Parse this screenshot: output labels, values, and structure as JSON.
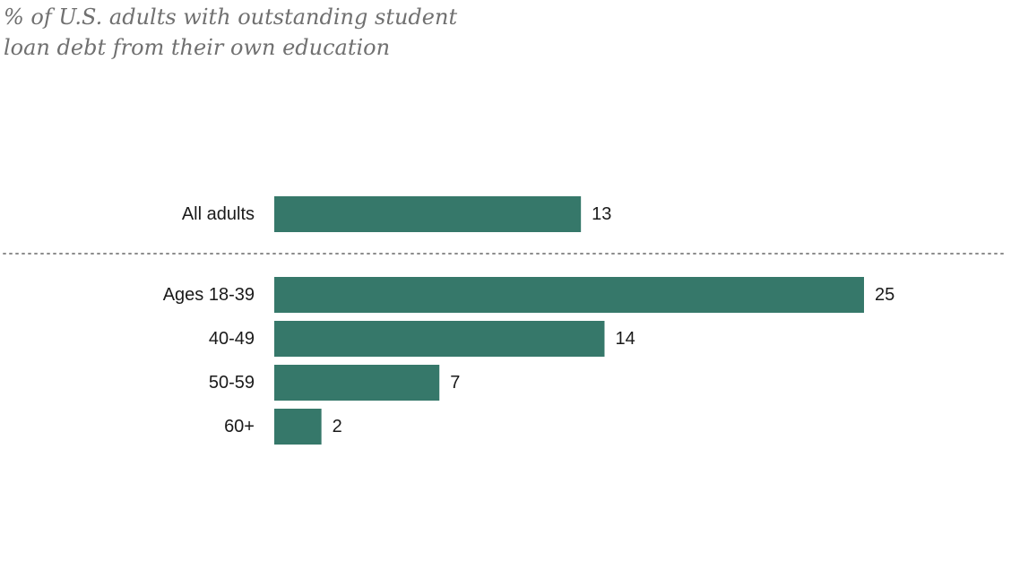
{
  "subtitle_lines": [
    "% of U.S. adults with outstanding student",
    "loan debt from their own education"
  ],
  "colors": {
    "bar": "#36786a",
    "divider": "#8c8c8c"
  },
  "chart_data": {
    "type": "bar",
    "orientation": "horizontal",
    "title": "% of U.S. adults with outstanding student loan debt from their own education",
    "categories": [
      "All adults",
      "Ages 18-39",
      "40-49",
      "50-59",
      "60+"
    ],
    "values": [
      13,
      25,
      14,
      7,
      2
    ],
    "data_labels": [
      "13",
      "25",
      "14",
      "7",
      "2"
    ],
    "groups": [
      {
        "categories": [
          "All adults"
        ]
      },
      {
        "categories": [
          "Ages 18-39",
          "40-49",
          "50-59",
          "60+"
        ]
      }
    ],
    "xlabel": "",
    "ylabel": "",
    "xlim": [
      0,
      25
    ],
    "grid": false,
    "legend": "none",
    "divider_between_groups": "dotted"
  }
}
